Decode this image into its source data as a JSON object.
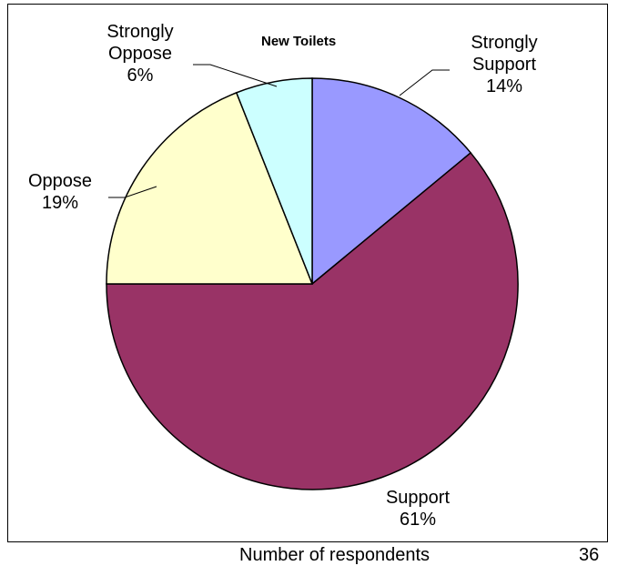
{
  "chart_data": {
    "type": "pie",
    "title": "New Toilets",
    "slices": [
      {
        "label": "Strongly Support",
        "label_lines": [
          "Strongly",
          "Support"
        ],
        "value": 14,
        "value_label": "14%",
        "color": "#9999ff"
      },
      {
        "label": "Support",
        "label_lines": [
          "Support"
        ],
        "value": 61,
        "value_label": "61%",
        "color": "#993366"
      },
      {
        "label": "Oppose",
        "label_lines": [
          "Oppose"
        ],
        "value": 19,
        "value_label": "19%",
        "color": "#ffffcc"
      },
      {
        "label": "Strongly Oppose",
        "label_lines": [
          "Strongly",
          "Oppose"
        ],
        "value": 6,
        "value_label": "6%",
        "color": "#ccffff"
      }
    ],
    "start_angle": "top, clockwise"
  },
  "footer": {
    "caption": "Number of respondents",
    "count": "36"
  }
}
